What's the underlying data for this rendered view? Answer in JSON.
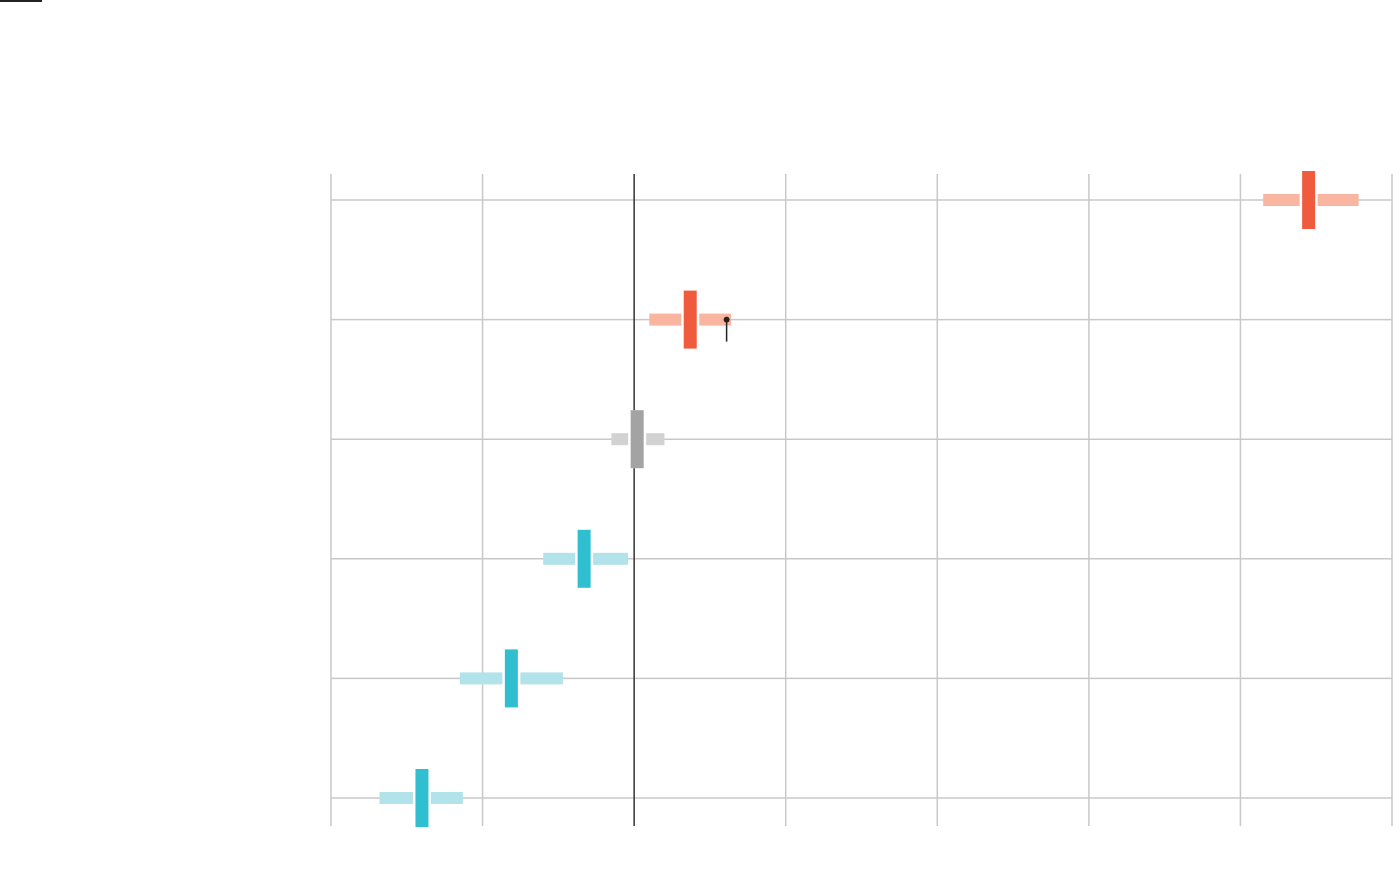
{
  "chart_data": {
    "type": "dot-with-intervals",
    "title": "",
    "xlabel": "",
    "ylabel": "",
    "xlim": [
      -2,
      5
    ],
    "x_grid": [
      -2,
      -1,
      0,
      1,
      2,
      3,
      4,
      5
    ],
    "reference_x": 0,
    "grid": true,
    "rows": [
      {
        "point": 4.45,
        "low": 4.15,
        "high": 4.78,
        "direction": "positive"
      },
      {
        "point": 0.37,
        "low": 0.1,
        "high": 0.64,
        "direction": "positive",
        "marker_x": 0.61
      },
      {
        "point": 0.02,
        "low": -0.15,
        "high": 0.2,
        "direction": "neutral"
      },
      {
        "point": -0.33,
        "low": -0.6,
        "high": -0.04,
        "direction": "negative"
      },
      {
        "point": -0.81,
        "low": -1.15,
        "high": -0.47,
        "direction": "negative"
      },
      {
        "point": -1.4,
        "low": -1.68,
        "high": -1.13,
        "direction": "negative"
      }
    ]
  },
  "colors": {
    "positive_point": "#ef5b3c",
    "positive_interval": "#f9b5a0",
    "neutral_point": "#a3a3a3",
    "neutral_interval": "#d2d2d2",
    "negative_point": "#2fbfd1",
    "negative_interval": "#b2e3ea",
    "grid": "#c8c8c8",
    "reference": "#333333"
  }
}
